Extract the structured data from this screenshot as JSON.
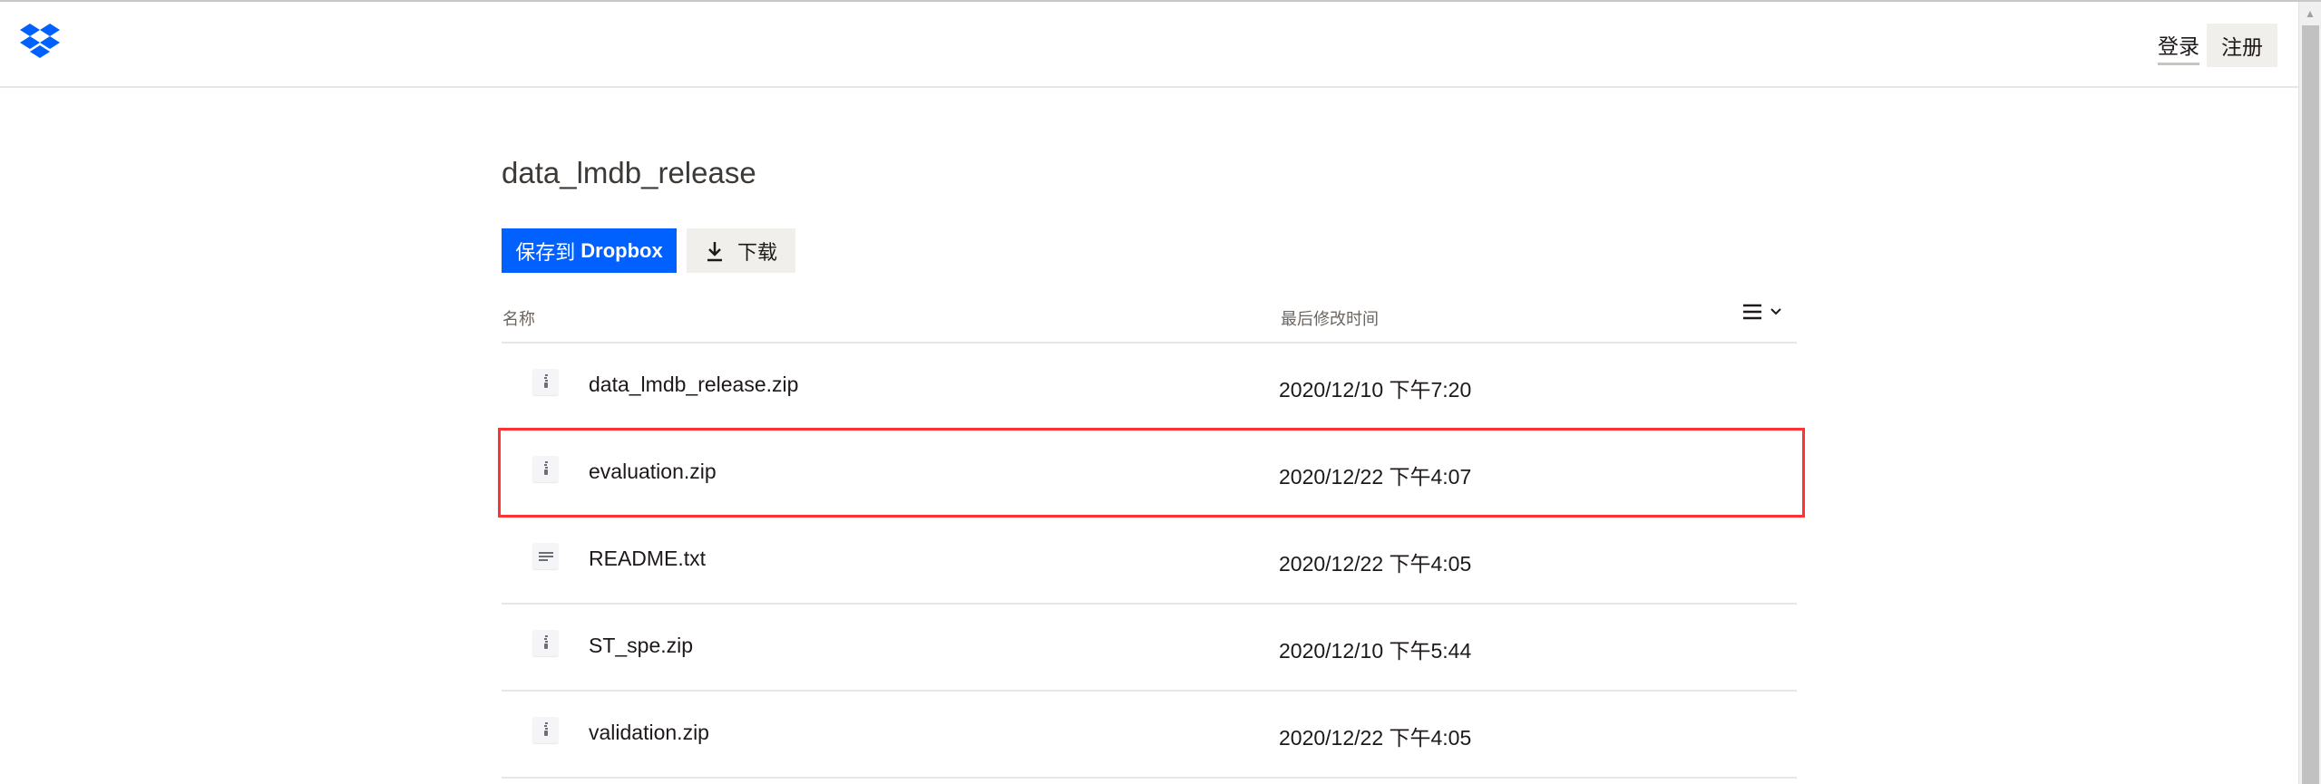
{
  "header": {
    "login_label": "登录",
    "signup_label": "注册",
    "logo": "dropbox-logo",
    "brand_color": "#0061fe"
  },
  "folder": {
    "title": "data_lmdb_release"
  },
  "actions": {
    "save_prefix": "保存到",
    "save_brand": "Dropbox",
    "download_label": "下载"
  },
  "table": {
    "columns": {
      "name": "名称",
      "modified": "最后修改时间"
    },
    "rows": [
      {
        "name": "data_lmdb_release.zip",
        "modified": "2020/12/10 下午7:20",
        "icon": "zip-file-icon"
      },
      {
        "name": "evaluation.zip",
        "modified": "2020/12/22 下午4:07",
        "icon": "zip-file-icon",
        "highlighted": true
      },
      {
        "name": "README.txt",
        "modified": "2020/12/22 下午4:05",
        "icon": "text-file-icon"
      },
      {
        "name": "ST_spe.zip",
        "modified": "2020/12/10 下午5:44",
        "icon": "zip-file-icon"
      },
      {
        "name": "validation.zip",
        "modified": "2020/12/22 下午4:05",
        "icon": "zip-file-icon"
      }
    ]
  },
  "highlight_color": "#ff3333"
}
